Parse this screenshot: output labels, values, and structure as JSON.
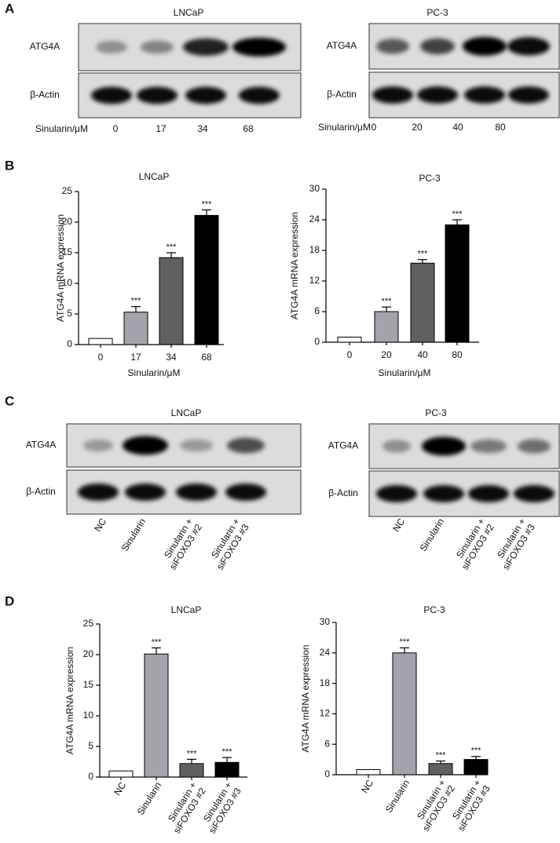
{
  "panels": [
    "A",
    "B",
    "C",
    "D"
  ],
  "blots": [
    {
      "title": "LNCaP",
      "rows": [
        "ATG4A",
        "β-Actin"
      ],
      "xlabel": "Sinularin/μM",
      "lanes": [
        "0",
        "17",
        "34",
        "68"
      ]
    },
    {
      "title": "PC-3",
      "rows": [
        "ATG4A",
        "β-Actin"
      ],
      "xlabel": "Sinularin/μM",
      "lanes": [
        "0",
        "20",
        "40",
        "80"
      ]
    },
    {
      "title": "LNCaP",
      "rows": [
        "ATG4A",
        "β-Actin"
      ],
      "lanes": [
        "NC",
        "Sinularin",
        "Sinularin +\nsiFOXO3 #2",
        "Sinularin +\nsiFOXO3 #3"
      ]
    },
    {
      "title": "PC-3",
      "rows": [
        "ATG4A",
        "β-Actin"
      ],
      "lanes": [
        "NC",
        "Sinularin",
        "Sinularin +\nsiFOXO3 #2",
        "Sinularin +\nsiFOXO3 #3"
      ]
    }
  ],
  "chart_data": [
    {
      "type": "bar",
      "title": "LNCaP",
      "ylabel": "ATG4A mRNA expression",
      "xlabel": "Sinularin/μM",
      "categories": [
        "0",
        "17",
        "34",
        "68"
      ],
      "values": [
        1,
        5.3,
        14.2,
        21.1
      ],
      "errors": [
        null,
        0.9,
        0.8,
        0.9
      ],
      "annotations": [
        null,
        "***",
        "***",
        "***"
      ],
      "colors": [
        "#ffffff",
        "#a3a3ab",
        "#606060",
        "#000000"
      ],
      "ylim": [
        0,
        25
      ],
      "yticks": [
        0,
        5,
        10,
        15,
        20,
        25
      ]
    },
    {
      "type": "bar",
      "title": "PC-3",
      "ylabel": "ATG4A mRNA expression",
      "xlabel": "Sinularin/μM",
      "categories": [
        "0",
        "20",
        "40",
        "80"
      ],
      "values": [
        1,
        6,
        15.5,
        23
      ],
      "errors": [
        null,
        0.9,
        0.7,
        1
      ],
      "annotations": [
        null,
        "***",
        "***",
        "***"
      ],
      "colors": [
        "#ffffff",
        "#a3a3ab",
        "#606060",
        "#000000"
      ],
      "ylim": [
        0,
        30
      ],
      "yticks": [
        0,
        6,
        12,
        18,
        24,
        30
      ]
    },
    {
      "type": "bar",
      "title": "LNCaP",
      "ylabel": "ATG4A mRNA expression",
      "categories": [
        "NC",
        "Sinularin",
        "Sinularin +\nsiFOXO3 #2",
        "Sinularin +\nsiFOXO3 #3"
      ],
      "values": [
        1,
        20.1,
        2.2,
        2.4
      ],
      "errors": [
        null,
        1,
        0.7,
        0.8
      ],
      "annotations": [
        null,
        "***",
        "***",
        "***"
      ],
      "colors": [
        "#ffffff",
        "#a3a3ab",
        "#606060",
        "#000000"
      ],
      "ylim": [
        0,
        25
      ],
      "yticks": [
        0,
        5,
        10,
        15,
        20,
        25
      ]
    },
    {
      "type": "bar",
      "title": "PC-3",
      "ylabel": "ATG4A mRNA expression",
      "categories": [
        "NC",
        "Sinularin",
        "Sinularin +\nsiFOXO3 #2",
        "Sinularin +\nsiFOXO3 #3"
      ],
      "values": [
        1,
        24,
        2.2,
        3
      ],
      "errors": [
        null,
        1,
        0.5,
        0.6
      ],
      "annotations": [
        null,
        "***",
        "***",
        "***"
      ],
      "colors": [
        "#ffffff",
        "#a3a3ab",
        "#606060",
        "#000000"
      ],
      "ylim": [
        0,
        30
      ],
      "yticks": [
        0,
        6,
        12,
        18,
        24,
        30
      ]
    }
  ]
}
